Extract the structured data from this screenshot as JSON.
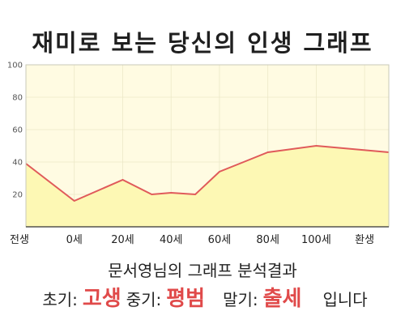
{
  "colors": {
    "plot_bg": "#fffbe2",
    "area_fill": "#fdf8b4",
    "line": "#e05a5a",
    "highlight": "#e04a4a",
    "grid": "#ffffff"
  },
  "chart_data": {
    "type": "area",
    "title": "재미로 보는 당신의 인생 그래프",
    "ylim": [
      0,
      100
    ],
    "y_ticks": [
      20,
      40,
      60,
      80,
      100
    ],
    "x_ticks": [
      {
        "label": "전생",
        "x": -20
      },
      {
        "label": "0세",
        "x": 0
      },
      {
        "label": "20세",
        "x": 20
      },
      {
        "label": "40세",
        "x": 40
      },
      {
        "label": "60세",
        "x": 60
      },
      {
        "label": "80세",
        "x": 80
      },
      {
        "label": "100세",
        "x": 100
      },
      {
        "label": "환생",
        "x": 120
      }
    ],
    "xlim": [
      -20,
      130
    ],
    "grid": true,
    "series": [
      {
        "points": [
          {
            "x": -20,
            "y": 39
          },
          {
            "x": 0,
            "y": 16
          },
          {
            "x": 20,
            "y": 29
          },
          {
            "x": 32,
            "y": 20
          },
          {
            "x": 40,
            "y": 21
          },
          {
            "x": 50,
            "y": 20
          },
          {
            "x": 60,
            "y": 34
          },
          {
            "x": 70,
            "y": 40
          },
          {
            "x": 80,
            "y": 46
          },
          {
            "x": 100,
            "y": 50
          },
          {
            "x": 130,
            "y": 46
          }
        ]
      }
    ]
  },
  "summary": "문서영님의 그래프 분석결과",
  "result": {
    "early_label": "초기:",
    "early_value": "고생",
    "mid_label": "중기:",
    "mid_value": "평범",
    "late_label": "말기:",
    "late_value": "출세",
    "tail": "입니다"
  }
}
